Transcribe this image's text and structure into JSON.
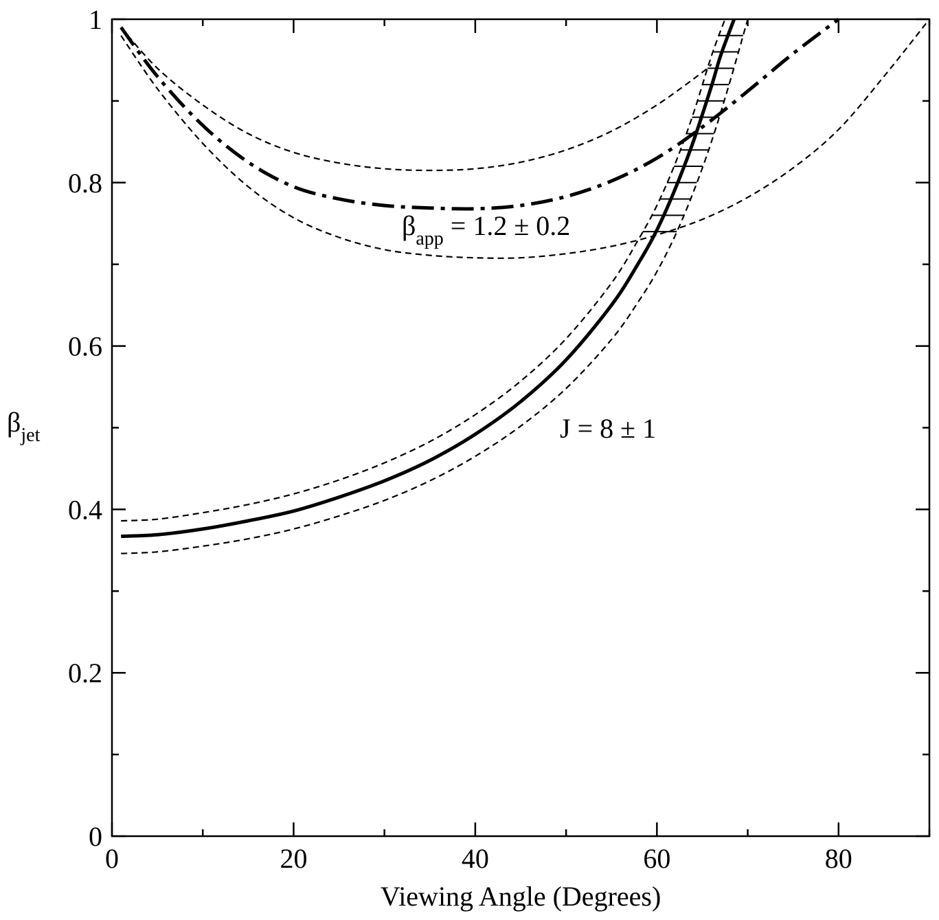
{
  "chart_data": {
    "type": "line",
    "xlabel": "Viewing Angle (Degrees)",
    "ylabel": {
      "main": "β",
      "sub": "jet"
    },
    "xlim": [
      0,
      90
    ],
    "ylim": [
      0,
      1
    ],
    "x_ticks": [
      "0",
      "20",
      "40",
      "60",
      "80"
    ],
    "y_ticks": [
      "0",
      "0.2",
      "0.4",
      "0.6",
      "0.8",
      "1"
    ],
    "grid": false,
    "legend": "none",
    "annotations": [
      {
        "id": "bapp",
        "main": "β",
        "sub": "app",
        "rest": " = 1.2 ± 0.2"
      },
      {
        "id": "j",
        "text": "J = 8 ± 1"
      }
    ],
    "series": [
      {
        "style": "dashdot-thick",
        "x": [
          1,
          5,
          10,
          15,
          20,
          25,
          30,
          35,
          40,
          45,
          50,
          55,
          60,
          65,
          70,
          75,
          80
        ],
        "y": [
          0.99,
          0.93,
          0.87,
          0.825,
          0.795,
          0.78,
          0.772,
          0.769,
          0.768,
          0.772,
          0.783,
          0.802,
          0.83,
          0.868,
          0.912,
          0.958,
          1.0
        ]
      },
      {
        "style": "dashed",
        "x": [
          1,
          5,
          10,
          15,
          20,
          25,
          30,
          35,
          40,
          45,
          50,
          55,
          60,
          65,
          66
        ],
        "y": [
          0.99,
          0.94,
          0.895,
          0.86,
          0.837,
          0.824,
          0.817,
          0.815,
          0.817,
          0.825,
          0.84,
          0.863,
          0.895,
          0.935,
          0.945
        ]
      },
      {
        "style": "dashed",
        "x": [
          1,
          5,
          10,
          15,
          20,
          25,
          30,
          35,
          40,
          45,
          50,
          55,
          60,
          65,
          70,
          75,
          80,
          85,
          90
        ],
        "y": [
          0.98,
          0.915,
          0.848,
          0.795,
          0.757,
          0.733,
          0.718,
          0.711,
          0.708,
          0.708,
          0.713,
          0.722,
          0.736,
          0.755,
          0.782,
          0.818,
          0.865,
          0.93,
          1.0
        ]
      },
      {
        "style": "solid-thick",
        "x": [
          1,
          5,
          10,
          15,
          20,
          25,
          30,
          35,
          40,
          45,
          50,
          55,
          58,
          60,
          62,
          64,
          66,
          67,
          68.5
        ],
        "y": [
          0.367,
          0.369,
          0.376,
          0.386,
          0.398,
          0.415,
          0.435,
          0.46,
          0.492,
          0.532,
          0.583,
          0.65,
          0.702,
          0.742,
          0.792,
          0.85,
          0.918,
          0.955,
          1.0
        ]
      },
      {
        "style": "dashed",
        "x": [
          1,
          5,
          10,
          15,
          20,
          25,
          30,
          35,
          40,
          45,
          50,
          55,
          58,
          60,
          62,
          64,
          66,
          67.5
        ],
        "y": [
          0.386,
          0.388,
          0.396,
          0.406,
          0.419,
          0.436,
          0.457,
          0.483,
          0.516,
          0.557,
          0.609,
          0.677,
          0.731,
          0.772,
          0.823,
          0.884,
          0.955,
          1.0
        ]
      },
      {
        "style": "dashed",
        "x": [
          1,
          5,
          10,
          15,
          20,
          25,
          30,
          35,
          40,
          45,
          50,
          55,
          58,
          60,
          62,
          64,
          66,
          68,
          70
        ],
        "y": [
          0.346,
          0.348,
          0.355,
          0.364,
          0.376,
          0.392,
          0.411,
          0.435,
          0.465,
          0.502,
          0.548,
          0.608,
          0.655,
          0.691,
          0.735,
          0.788,
          0.85,
          0.922,
          1.0
        ]
      }
    ],
    "hatch_region": {
      "y": [
        0.74,
        0.76,
        0.78,
        0.8,
        0.82,
        0.84,
        0.86,
        0.88,
        0.9,
        0.92,
        0.94,
        0.96,
        0.98
      ]
    }
  }
}
